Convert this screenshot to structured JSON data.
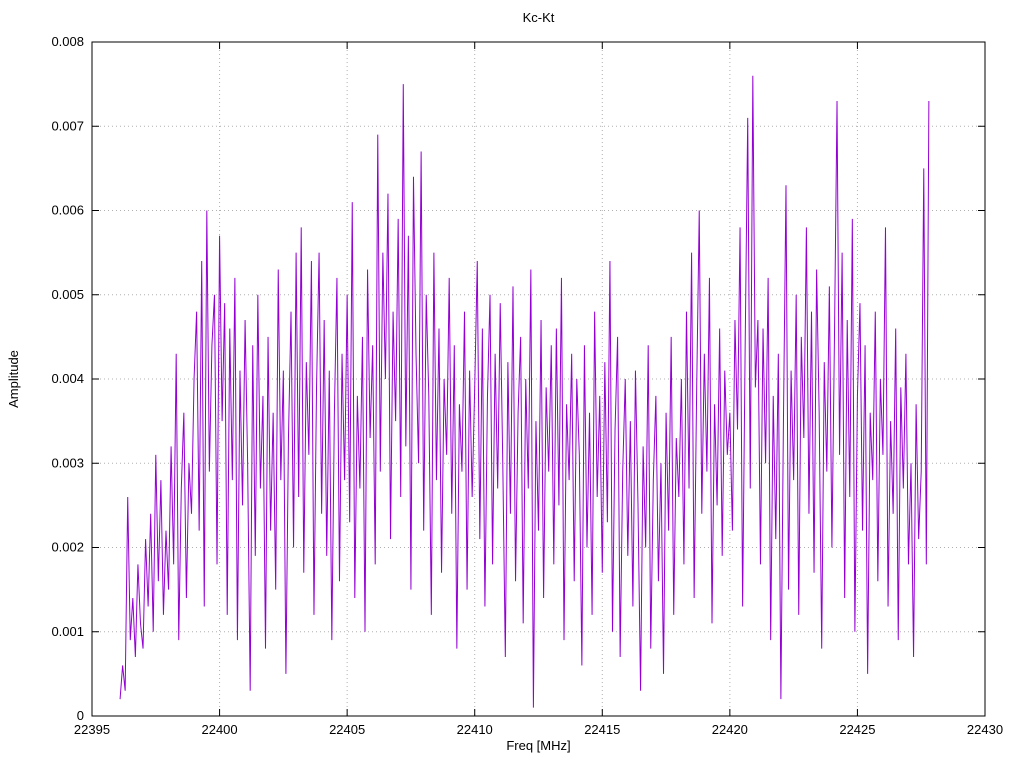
{
  "chart_data": {
    "type": "line",
    "title": "Kc-Kt",
    "xlabel": "Freq [MHz]",
    "ylabel": "Amplitude",
    "xlim": [
      22395,
      22430
    ],
    "ylim": [
      0,
      0.008
    ],
    "grid": "dotted",
    "legend": "none",
    "line_color": "#9400d3",
    "grid_color": "#b0b0b0",
    "axis_color": "#000000",
    "x_ticks": [
      22395,
      22400,
      22405,
      22410,
      22415,
      22420,
      22425,
      22430
    ],
    "x_tick_labels": [
      "22395",
      "22400",
      "22405",
      "22410",
      "22415",
      "22420",
      "22425",
      "22430"
    ],
    "y_ticks": [
      0,
      0.001,
      0.002,
      0.003,
      0.004,
      0.005,
      0.006,
      0.007,
      0.008
    ],
    "y_tick_labels": [
      "0",
      "0.001",
      "0.002",
      "0.003",
      "0.004",
      "0.005",
      "0.006",
      "0.007",
      "0.008"
    ],
    "series": [
      {
        "name": "Kc-Kt",
        "x_start": 22396.1,
        "x_step": 0.1,
        "y_scale": 0.0001,
        "values": [
          2,
          6,
          3,
          26,
          9,
          14,
          7,
          18,
          11,
          8,
          21,
          13,
          24,
          10,
          31,
          16,
          28,
          12,
          22,
          15,
          32,
          18,
          43,
          9,
          27,
          36,
          14,
          30,
          24,
          40,
          48,
          22,
          54,
          13,
          60,
          29,
          44,
          50,
          18,
          57,
          35,
          49,
          12,
          46,
          28,
          52,
          9,
          41,
          25,
          47,
          30,
          3,
          44,
          19,
          50,
          27,
          38,
          8,
          45,
          22,
          36,
          15,
          53,
          28,
          41,
          5,
          33,
          48,
          20,
          55,
          26,
          58,
          17,
          42,
          31,
          54,
          12,
          39,
          55,
          24,
          47,
          19,
          41,
          9,
          36,
          52,
          16,
          43,
          28,
          50,
          23,
          61,
          14,
          38,
          27,
          45,
          10,
          53,
          33,
          44,
          18,
          69,
          29,
          55,
          40,
          62,
          21,
          48,
          35,
          59,
          26,
          75,
          32,
          57,
          15,
          64,
          43,
          30,
          67,
          22,
          50,
          38,
          12,
          55,
          28,
          46,
          17,
          40,
          31,
          52,
          24,
          44,
          8,
          37,
          29,
          48,
          15,
          41,
          26,
          39,
          54,
          21,
          46,
          13,
          38,
          50,
          18,
          43,
          27,
          49,
          30,
          7,
          42,
          24,
          51,
          16,
          36,
          45,
          11,
          40,
          27,
          53,
          1,
          35,
          22,
          47,
          14,
          39,
          29,
          44,
          18,
          46,
          25,
          52,
          9,
          37,
          28,
          43,
          16,
          40,
          31,
          6,
          44,
          20,
          36,
          12,
          48,
          26,
          38,
          17,
          42,
          23,
          54,
          10,
          34,
          45,
          7,
          29,
          40,
          19,
          35,
          13,
          41,
          25,
          3,
          32,
          20,
          44,
          8,
          28,
          38,
          16,
          30,
          5,
          36,
          22,
          45,
          12,
          33,
          26,
          40,
          18,
          48,
          27,
          55,
          14,
          39,
          60,
          24,
          43,
          29,
          52,
          11,
          37,
          25,
          46,
          19,
          41,
          31,
          36,
          22,
          47,
          34,
          58,
          13,
          44,
          71,
          27,
          76,
          39,
          47,
          18,
          46,
          30,
          52,
          9,
          38,
          21,
          43,
          2,
          35,
          63,
          15,
          41,
          28,
          50,
          12,
          45,
          33,
          58,
          24,
          48,
          17,
          53,
          36,
          8,
          42,
          29,
          51,
          20,
          45,
          73,
          31,
          55,
          14,
          47,
          26,
          59,
          10,
          38,
          49,
          22,
          44,
          5,
          36,
          28,
          48,
          16,
          40,
          31,
          58,
          13,
          35,
          24,
          46,
          9,
          39,
          27,
          43,
          18,
          30,
          7,
          37,
          21,
          29,
          65,
          18,
          73
        ]
      }
    ]
  }
}
